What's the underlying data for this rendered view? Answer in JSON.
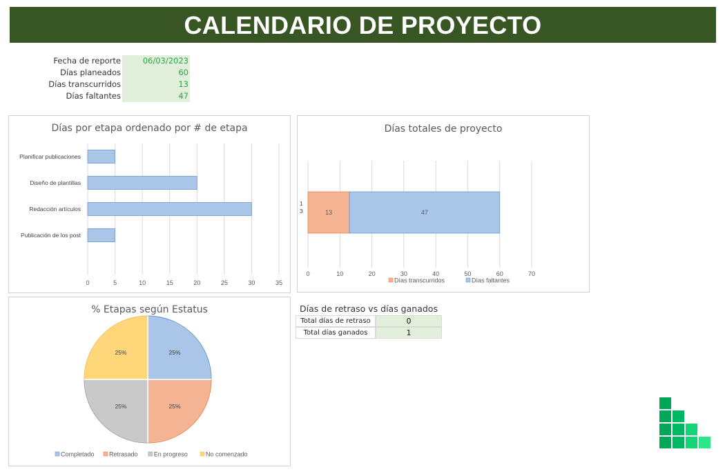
{
  "title": "CALENDARIO DE PROYECTO",
  "info": [
    {
      "label": "Fecha de reporte",
      "value": "06/03/2023"
    },
    {
      "label": "Días planeados",
      "value": "60"
    },
    {
      "label": "Días transcurridos",
      "value": "13"
    },
    {
      "label": "Días faltantes",
      "value": "47"
    }
  ],
  "retraso": {
    "title": "Días de retraso vs días ganados",
    "rows": [
      {
        "label": "Total días de retraso",
        "value": "0"
      },
      {
        "label": "Total días ganados",
        "value": "1"
      }
    ]
  },
  "colors": {
    "banner": "#375623",
    "cell_green": "#e2efda",
    "value_green": "#22a84a",
    "bar_blue": "#a9c5e8",
    "bar_blue_border": "#6d98cc",
    "orange": "#f4b393",
    "gray": "#c9c9c9",
    "yellow": "#ffd77a",
    "logo_green": "#00a65a"
  },
  "chart_data": [
    {
      "type": "bar",
      "orientation": "horizontal",
      "title": "Días por etapa ordenado por # de etapa",
      "categories": [
        "Planificar publicaciones",
        "Diseño de plantillas",
        "Redacción artículos",
        "Publicación de los post"
      ],
      "values": [
        5,
        20,
        30,
        5
      ],
      "xlim": [
        0,
        35
      ],
      "xticks": [
        "0",
        "5",
        "10",
        "15",
        "20",
        "25",
        "30",
        "35"
      ],
      "grid": true
    },
    {
      "type": "bar",
      "orientation": "horizontal",
      "stacked": true,
      "title": "Días totales de proyecto",
      "categories": [
        "1\n3"
      ],
      "series": [
        {
          "name": "Días transcurridos",
          "values": [
            13
          ],
          "label": "13",
          "color": "#f4b393"
        },
        {
          "name": "Días faltantes",
          "values": [
            47
          ],
          "label": "47",
          "color": "#a9c5e8"
        }
      ],
      "xlim": [
        0,
        70
      ],
      "xticks": [
        "0",
        "10",
        "20",
        "30",
        "40",
        "50",
        "60",
        "70"
      ],
      "legend": "bottom",
      "grid": true
    },
    {
      "type": "pie",
      "title": "% Etapas según Estatus",
      "slices": [
        {
          "name": "Completado",
          "value": 25,
          "label": "25%",
          "color": "#a9c5e8"
        },
        {
          "name": "Retrasado",
          "value": 25,
          "label": "25%",
          "color": "#f4b393"
        },
        {
          "name": "En progreso",
          "value": 25,
          "label": "25%",
          "color": "#c9c9c9"
        },
        {
          "name": "No comenzado",
          "value": 25,
          "label": "25%",
          "color": "#ffd77a"
        }
      ],
      "legend": "bottom"
    }
  ]
}
